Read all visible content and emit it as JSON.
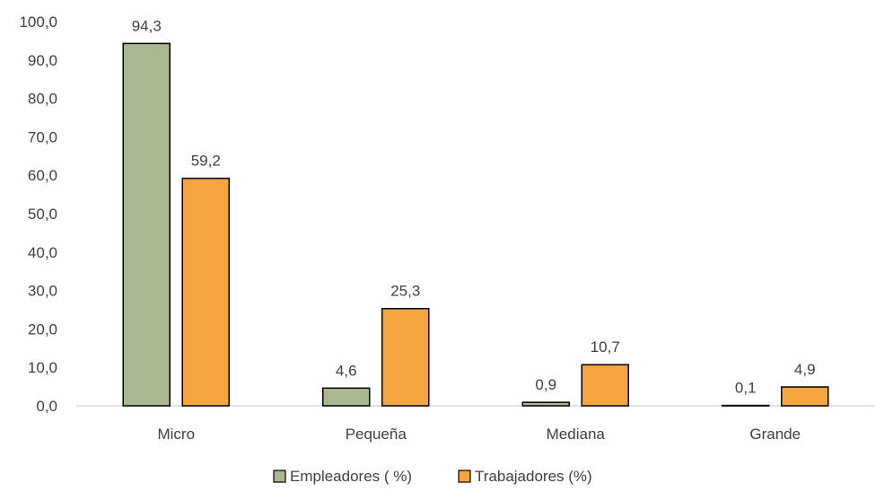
{
  "chart_data": {
    "type": "bar",
    "categories": [
      "Micro",
      "Pequeña",
      "Mediana",
      "Grande"
    ],
    "series": [
      {
        "name": "Empleadores ( %)",
        "values": [
          94.3,
          4.6,
          0.9,
          0.1
        ],
        "color": "#a9b890",
        "value_labels": [
          "94,3",
          "4,6",
          "0,9",
          "0,1"
        ]
      },
      {
        "name": "Trabajadores (%)",
        "values": [
          59.2,
          25.3,
          10.7,
          4.9
        ],
        "color": "#f4a540",
        "value_labels": [
          "59,2",
          "25,3",
          "10,7",
          "4,9"
        ]
      }
    ],
    "ylim": [
      0,
      100
    ],
    "yticks": [
      0,
      10,
      20,
      30,
      40,
      50,
      60,
      70,
      80,
      90,
      100
    ],
    "ytick_labels": [
      "0,0",
      "10,0",
      "20,0",
      "30,0",
      "40,0",
      "50,0",
      "60,0",
      "70,0",
      "80,0",
      "90,0",
      "100,0"
    ],
    "title": "",
    "xlabel": "",
    "ylabel": "",
    "grid": false,
    "legend_position": "bottom"
  }
}
